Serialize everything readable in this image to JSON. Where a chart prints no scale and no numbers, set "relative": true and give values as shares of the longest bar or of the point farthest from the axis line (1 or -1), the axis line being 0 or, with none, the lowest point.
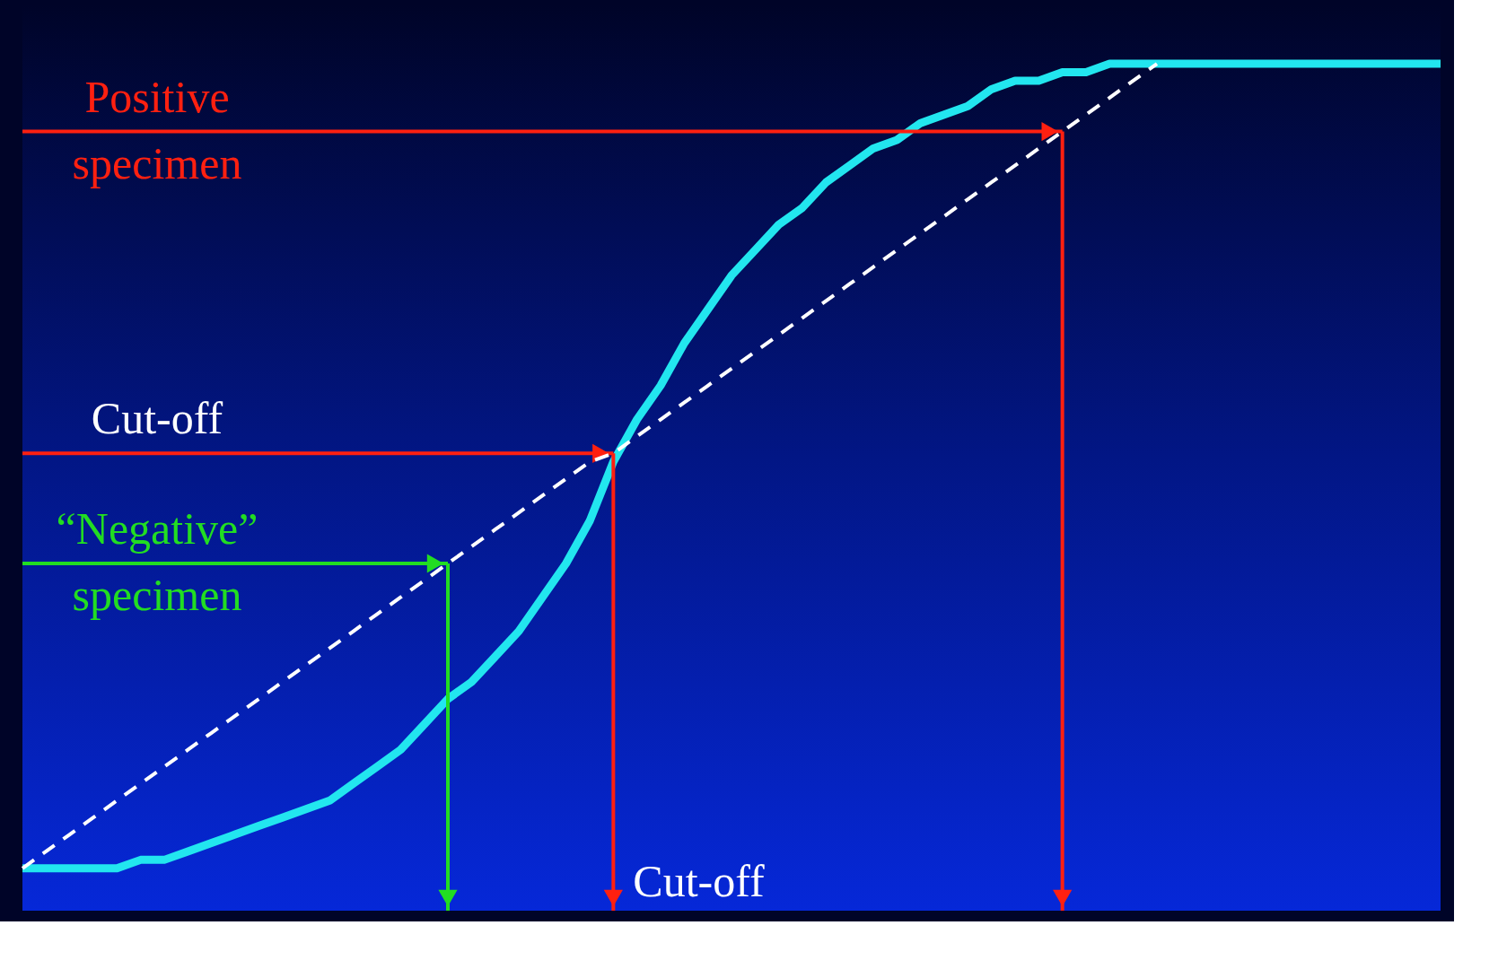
{
  "chart_data": {
    "type": "line",
    "relative": true,
    "grid": false,
    "tick_labels": false,
    "categories": [
      null,
      null,
      null,
      null,
      null,
      null,
      null,
      null,
      null,
      null,
      null,
      null,
      null,
      null,
      null,
      null,
      null,
      null,
      null,
      null,
      null,
      null,
      null,
      null,
      null,
      null,
      null,
      null,
      null,
      null,
      null,
      null,
      null,
      null,
      null,
      null,
      null,
      null,
      null,
      null,
      null,
      null,
      null,
      null,
      null,
      null,
      null,
      null,
      null,
      null,
      null,
      null,
      null,
      null,
      null,
      null,
      null,
      null,
      null,
      null,
      null
    ],
    "series": [
      {
        "color": "#22e6ef",
        "values": [
          0.05,
          0.05,
          0.05,
          0.05,
          0.05,
          0.06,
          0.06,
          0.07,
          0.08,
          0.09,
          0.1,
          0.11,
          0.12,
          0.13,
          0.15,
          0.17,
          0.19,
          0.22,
          0.25,
          0.27,
          0.3,
          0.33,
          0.37,
          0.41,
          0.46,
          0.53,
          0.58,
          0.62,
          0.67,
          0.71,
          0.75,
          0.78,
          0.81,
          0.83,
          0.86,
          0.88,
          0.9,
          0.91,
          0.93,
          0.94,
          0.95,
          0.97,
          0.98,
          0.98,
          0.99,
          0.99,
          1.0,
          1.0,
          1.0,
          1.0,
          1.0,
          1.0,
          1.0,
          1.0,
          1.0,
          1.0,
          1.0,
          1.0,
          1.0,
          1.0,
          1.0
        ]
      },
      {
        "color": "#ffffff",
        "line_style": "dashed",
        "values": [
          0.05,
          0.07,
          0.09,
          0.11,
          0.13,
          0.15,
          0.17,
          0.19,
          0.21,
          0.23,
          0.25,
          0.27,
          0.29,
          0.31,
          0.33,
          0.35,
          0.37,
          0.39,
          0.41,
          0.43,
          0.45,
          0.47,
          0.49,
          0.51,
          0.53,
          0.54,
          0.56,
          0.58,
          0.6,
          0.62,
          0.64,
          0.66,
          0.68,
          0.7,
          0.72,
          0.74,
          0.76,
          0.78,
          0.8,
          0.82,
          0.84,
          0.86,
          0.88,
          0.9,
          0.92,
          0.94,
          0.96,
          0.98,
          1.0,
          null,
          null,
          null,
          null,
          null,
          null,
          null,
          null,
          null,
          null,
          null,
          null
        ]
      },
      {
        "color": "#ff2010",
        "values": [
          0.92,
          0.92,
          0.92,
          0.92,
          0.92,
          0.92,
          0.92,
          0.92,
          0.92,
          0.92,
          0.92,
          0.92,
          0.92,
          0.92,
          0.92,
          0.92,
          0.92,
          0.92,
          0.92,
          0.92,
          0.92,
          0.92,
          0.92,
          0.92,
          0.92,
          0.92,
          0.92,
          0.92,
          0.92,
          0.92,
          0.92,
          0.92,
          0.92,
          0.92,
          0.92,
          0.92,
          0.92,
          0.92,
          0.92,
          0.92,
          0.92,
          0.92,
          0.92,
          0.92,
          0.92,
          null,
          null,
          null,
          null,
          null,
          null,
          null,
          null,
          null,
          null,
          null,
          null,
          null,
          null,
          null,
          null
        ]
      },
      {
        "color": "#ff2010",
        "values": [
          0.54,
          0.54,
          0.54,
          0.54,
          0.54,
          0.54,
          0.54,
          0.54,
          0.54,
          0.54,
          0.54,
          0.54,
          0.54,
          0.54,
          0.54,
          0.54,
          0.54,
          0.54,
          0.54,
          0.54,
          0.54,
          0.54,
          0.54,
          0.54,
          0.54,
          0.54,
          null,
          null,
          null,
          null,
          null,
          null,
          null,
          null,
          null,
          null,
          null,
          null,
          null,
          null,
          null,
          null,
          null,
          null,
          null,
          null,
          null,
          null,
          null,
          null,
          null,
          null,
          null,
          null,
          null,
          null,
          null,
          null,
          null,
          null,
          null
        ]
      },
      {
        "color": "#22dd22",
        "values": [
          0.41,
          0.41,
          0.41,
          0.41,
          0.41,
          0.41,
          0.41,
          0.41,
          0.41,
          0.41,
          0.41,
          0.41,
          0.41,
          0.41,
          0.41,
          0.41,
          0.41,
          0.41,
          0.41,
          null,
          null,
          null,
          null,
          null,
          null,
          null,
          null,
          null,
          null,
          null,
          null,
          null,
          null,
          null,
          null,
          null,
          null,
          null,
          null,
          null,
          null,
          null,
          null,
          null,
          null,
          null,
          null,
          null,
          null,
          null,
          null,
          null,
          null,
          null,
          null,
          null,
          null,
          null,
          null,
          null,
          null
        ]
      }
    ],
    "annotations": [
      "Positive specimen",
      "Cut-off",
      "“Negative” specimen",
      "Cut-off"
    ]
  }
}
